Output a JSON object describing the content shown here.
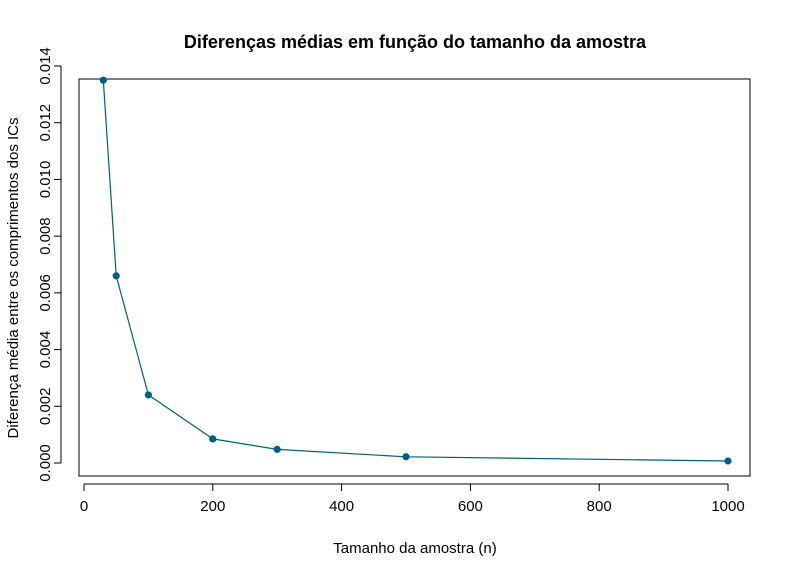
{
  "chart_data": {
    "type": "line",
    "title": "Diferenças médias em função do tamanho da amostra",
    "xlabel": "Tamanho da amostra (n)",
    "ylabel": "Diferença média entre os comprimentos dos ICs",
    "xlim": [
      0,
      1000
    ],
    "ylim": [
      0,
      0.014
    ],
    "x_ticks": [
      0,
      200,
      400,
      600,
      800,
      1000
    ],
    "x_tick_labels": [
      "0",
      "200",
      "400",
      "600",
      "800",
      "1000"
    ],
    "y_ticks": [
      0,
      0.002,
      0.004,
      0.006,
      0.008,
      0.01,
      0.012,
      0.014
    ],
    "y_tick_labels": [
      "0.000",
      "0.002",
      "0.004",
      "0.006",
      "0.008",
      "0.010",
      "0.012",
      "0.014"
    ],
    "grid": false,
    "legend": "none",
    "series": [
      {
        "color": "#005f80",
        "marker": "filled-circle",
        "x": [
          30,
          50,
          100,
          200,
          300,
          500,
          1000
        ],
        "values": [
          0.0135,
          0.0066,
          0.0024,
          0.00085,
          0.00048,
          0.00022,
          7e-05
        ]
      }
    ]
  }
}
